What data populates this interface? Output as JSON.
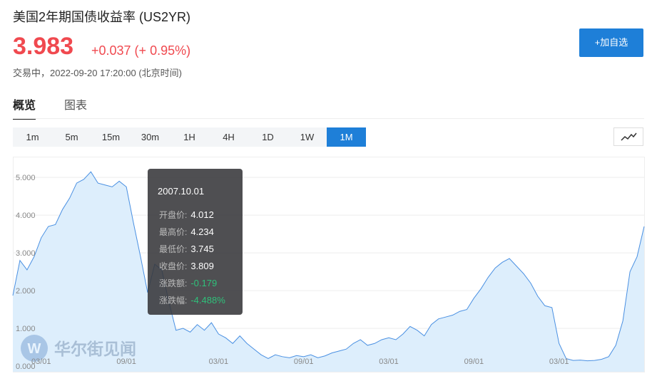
{
  "header": {
    "title": "美国2年期国债收益率 (US2YR)",
    "price": "3.983",
    "change": "+0.037 (+ 0.95%)",
    "status": "交易中，2022-09-20 17:20:00 (北京时间)",
    "button": "+加自选"
  },
  "tabs": [
    {
      "label": "概览",
      "active": true
    },
    {
      "label": "图表",
      "active": false
    }
  ],
  "periods": [
    {
      "label": "1m",
      "active": false
    },
    {
      "label": "5m",
      "active": false
    },
    {
      "label": "15m",
      "active": false
    },
    {
      "label": "30m",
      "active": false
    },
    {
      "label": "1H",
      "active": false
    },
    {
      "label": "4H",
      "active": false
    },
    {
      "label": "1D",
      "active": false
    },
    {
      "label": "1W",
      "active": false
    },
    {
      "label": "1M",
      "active": true
    }
  ],
  "tooltip": {
    "date": "2007.10.01",
    "rows": [
      {
        "label": "开盘价:",
        "value": "4.012",
        "tone": "plain"
      },
      {
        "label": "最高价:",
        "value": "4.234",
        "tone": "plain"
      },
      {
        "label": "最低价:",
        "value": "3.745",
        "tone": "plain"
      },
      {
        "label": "收盘价:",
        "value": "3.809",
        "tone": "plain"
      },
      {
        "label": "涨跌额:",
        "value": "-0.179",
        "tone": "down"
      },
      {
        "label": "涨跌幅:",
        "value": "-4.488%",
        "tone": "down"
      }
    ]
  },
  "watermark": "华尔街见闻",
  "chart_data": {
    "type": "area",
    "line_color": "#4a90e2",
    "fill_color": "#ddeefc",
    "grid": true,
    "ylim": [
      -0.15,
      5.55
    ],
    "yticks": [
      {
        "value": 0,
        "label": "0.000"
      },
      {
        "value": 1,
        "label": "1.000"
      },
      {
        "value": 2,
        "label": "2.000"
      },
      {
        "value": 3,
        "label": "3.000"
      },
      {
        "value": 4,
        "label": "4.000"
      },
      {
        "value": 5,
        "label": "5.000"
      }
    ],
    "categories": [
      null,
      null,
      null,
      null,
      "03/01",
      null,
      null,
      null,
      null,
      null,
      null,
      null,
      null,
      null,
      null,
      null,
      "09/01",
      null,
      null,
      null,
      null,
      null,
      null,
      null,
      null,
      null,
      null,
      null,
      null,
      "03/01",
      null,
      null,
      null,
      null,
      null,
      null,
      null,
      null,
      null,
      null,
      null,
      "09/01",
      null,
      null,
      null,
      null,
      null,
      null,
      null,
      null,
      null,
      null,
      null,
      "03/01",
      null,
      null,
      null,
      null,
      null,
      null,
      null,
      null,
      null,
      null,
      null,
      "09/01",
      null,
      null,
      null,
      null,
      null,
      null,
      null,
      null,
      null,
      null,
      null,
      "03/01",
      null,
      null,
      null,
      null,
      null,
      null,
      null,
      null,
      null,
      null,
      null,
      null
    ],
    "values": [
      1.87,
      2.8,
      2.55,
      2.9,
      3.4,
      3.7,
      3.75,
      4.15,
      4.45,
      4.85,
      4.95,
      5.15,
      4.85,
      4.8,
      4.75,
      4.9,
      4.75,
      3.8,
      2.9,
      1.95,
      2.7,
      2.55,
      1.7,
      0.95,
      1.0,
      0.9,
      1.1,
      0.95,
      1.15,
      0.85,
      0.75,
      0.6,
      0.8,
      0.6,
      0.45,
      0.3,
      0.2,
      0.3,
      0.25,
      0.22,
      0.28,
      0.25,
      0.3,
      0.22,
      0.27,
      0.35,
      0.4,
      0.45,
      0.6,
      0.7,
      0.55,
      0.6,
      0.7,
      0.75,
      0.7,
      0.85,
      1.05,
      0.95,
      0.8,
      1.1,
      1.25,
      1.3,
      1.35,
      1.45,
      1.5,
      1.8,
      2.05,
      2.35,
      2.6,
      2.75,
      2.85,
      2.65,
      2.45,
      2.2,
      1.85,
      1.6,
      1.55,
      0.6,
      0.2,
      0.15,
      0.16,
      0.14,
      0.15,
      0.18,
      0.25,
      0.55,
      1.2,
      2.5,
      2.9,
      3.7
    ]
  }
}
